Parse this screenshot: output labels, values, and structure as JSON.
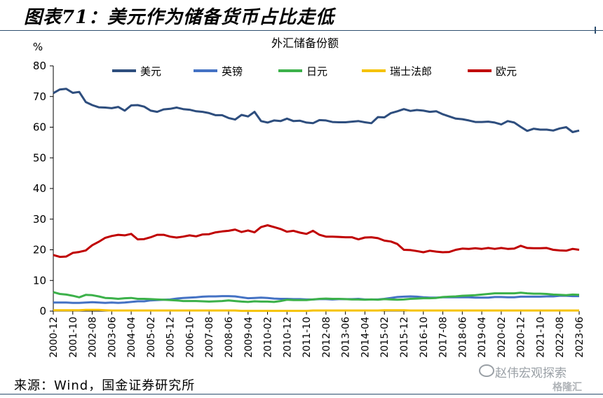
{
  "figure_title": "图表71：美元作为储备货币占比走低",
  "source": "来源：Wind，国金证券研究所",
  "watermark": {
    "primary": "赵伟宏观探索",
    "secondary": "格隆汇"
  },
  "colors": {
    "美元": "#2e4e7e",
    "英镑": "#4472c4",
    "日元": "#3cb14a",
    "瑞士法郎": "#f5c200",
    "欧元": "#c00000",
    "rule": "#2e4e6e"
  },
  "chart_data": {
    "type": "line",
    "title": "外汇储备份额",
    "ylabel": "%",
    "ylim": [
      0,
      80
    ],
    "yticks": [
      0,
      10,
      20,
      30,
      40,
      50,
      60,
      70,
      80
    ],
    "grid": false,
    "legend_position": "top",
    "x": [
      "2000-12",
      "2001-03",
      "2001-06",
      "2001-10",
      "2002-02",
      "2002-05",
      "2002-08",
      "2002-12",
      "2003-03",
      "2003-06",
      "2003-09",
      "2003-12",
      "2004-04",
      "2004-07",
      "2004-10",
      "2005-02",
      "2005-05",
      "2005-08",
      "2005-12",
      "2006-03",
      "2006-06",
      "2006-10",
      "2007-01",
      "2007-04",
      "2007-08",
      "2007-11",
      "2008-02",
      "2008-06",
      "2008-09",
      "2008-12",
      "2009-04",
      "2009-07",
      "2009-10",
      "2010-02",
      "2010-05",
      "2010-08",
      "2010-12",
      "2011-03",
      "2011-06",
      "2011-10",
      "2012-01",
      "2012-04",
      "2012-08",
      "2012-11",
      "2013-02",
      "2013-06",
      "2013-09",
      "2013-12",
      "2014-04",
      "2014-07",
      "2014-10",
      "2015-02",
      "2015-05",
      "2015-08",
      "2015-12",
      "2016-03",
      "2016-06",
      "2016-10",
      "2017-01",
      "2017-04",
      "2017-08",
      "2017-11",
      "2018-02",
      "2018-06",
      "2018-09",
      "2018-12",
      "2019-04",
      "2019-07",
      "2019-10",
      "2020-02",
      "2020-05",
      "2020-08",
      "2020-12",
      "2021-03",
      "2021-06",
      "2021-10",
      "2022-01",
      "2022-04",
      "2022-08",
      "2022-11",
      "2023-02",
      "2023-06"
    ],
    "x_tick_labels": [
      "2000-12",
      "2001-10",
      "2002-08",
      "2003-06",
      "2004-04",
      "2005-02",
      "2005-12",
      "2006-10",
      "2007-08",
      "2008-06",
      "2009-04",
      "2010-02",
      "2010-12",
      "2011-10",
      "2012-08",
      "2013-06",
      "2014-04",
      "2015-02",
      "2015-12",
      "2016-10",
      "2017-08",
      "2018-06",
      "2019-04",
      "2020-02",
      "2020-12",
      "2021-10",
      "2022-08",
      "2023-06"
    ],
    "series": [
      {
        "name": "美元",
        "values": [
          71.1,
          72.3,
          72.5,
          71.2,
          71.5,
          68.2,
          67.2,
          66.5,
          66.4,
          66.2,
          66.6,
          65.4,
          67.1,
          67.2,
          66.7,
          65.4,
          65.0,
          65.8,
          66.0,
          66.4,
          65.9,
          65.7,
          65.2,
          65.0,
          64.6,
          63.9,
          63.9,
          63.0,
          62.5,
          64.0,
          63.5,
          65.0,
          62.0,
          61.5,
          62.2,
          62.0,
          62.8,
          62.0,
          62.1,
          61.5,
          61.3,
          62.3,
          62.2,
          61.7,
          61.6,
          61.6,
          61.8,
          62.0,
          61.6,
          61.3,
          63.3,
          63.2,
          64.6,
          65.2,
          65.9,
          65.3,
          65.6,
          65.4,
          65.0,
          65.2,
          64.2,
          63.5,
          62.8,
          62.6,
          62.2,
          61.7,
          61.7,
          61.8,
          61.5,
          60.9,
          62.0,
          61.5,
          60.1,
          58.8,
          59.5,
          59.2,
          59.2,
          58.9,
          59.6,
          60.0,
          58.4,
          58.9
        ]
      },
      {
        "name": "英镑",
        "values": [
          2.8,
          2.8,
          2.8,
          2.7,
          2.7,
          2.8,
          2.9,
          2.8,
          2.7,
          2.8,
          2.7,
          2.8,
          3.0,
          3.2,
          3.2,
          3.5,
          3.6,
          3.7,
          3.8,
          4.1,
          4.3,
          4.4,
          4.5,
          4.7,
          4.8,
          4.8,
          4.9,
          4.9,
          4.8,
          4.5,
          4.2,
          4.3,
          4.4,
          4.3,
          4.1,
          4.0,
          4.0,
          3.9,
          3.9,
          3.8,
          3.8,
          3.9,
          3.9,
          3.8,
          3.9,
          3.9,
          3.9,
          4.0,
          3.8,
          3.8,
          3.8,
          4.0,
          4.3,
          4.6,
          4.7,
          4.8,
          4.7,
          4.5,
          4.4,
          4.4,
          4.5,
          4.5,
          4.5,
          4.5,
          4.5,
          4.4,
          4.4,
          4.4,
          4.6,
          4.6,
          4.5,
          4.5,
          4.7,
          4.7,
          4.7,
          4.7,
          4.8,
          4.8,
          5.0,
          5.0,
          4.9,
          4.9
        ]
      },
      {
        "name": "日元",
        "values": [
          6.2,
          5.6,
          5.4,
          5.0,
          4.5,
          5.3,
          5.2,
          4.8,
          4.3,
          4.2,
          4.0,
          4.2,
          4.3,
          4.0,
          4.0,
          3.9,
          3.8,
          3.7,
          3.6,
          3.5,
          3.3,
          3.3,
          3.3,
          3.2,
          3.1,
          3.2,
          3.3,
          3.5,
          3.3,
          3.1,
          3.0,
          3.2,
          3.1,
          3.1,
          3.0,
          3.3,
          3.7,
          3.6,
          3.6,
          3.6,
          3.8,
          4.0,
          4.1,
          4.0,
          4.0,
          3.9,
          3.8,
          3.8,
          3.7,
          3.8,
          3.7,
          3.9,
          3.8,
          3.7,
          3.8,
          4.0,
          4.1,
          4.2,
          4.2,
          4.3,
          4.6,
          4.7,
          4.8,
          5.0,
          5.1,
          5.2,
          5.4,
          5.6,
          5.8,
          5.8,
          5.8,
          5.8,
          6.0,
          5.8,
          5.7,
          5.7,
          5.6,
          5.4,
          5.3,
          5.2,
          5.4,
          5.3
        ]
      },
      {
        "name": "瑞士法郎",
        "values": [
          0.3,
          0.3,
          0.3,
          0.3,
          0.3,
          0.4,
          0.4,
          0.4,
          0.3,
          0.2,
          0.2,
          0.2,
          0.2,
          0.2,
          0.2,
          0.2,
          0.2,
          0.2,
          0.2,
          0.2,
          0.2,
          0.2,
          0.2,
          0.2,
          0.2,
          0.2,
          0.2,
          0.2,
          0.2,
          0.1,
          0.1,
          0.1,
          0.1,
          0.1,
          0.1,
          0.1,
          0.1,
          0.1,
          0.1,
          0.1,
          0.2,
          0.2,
          0.2,
          0.2,
          0.2,
          0.2,
          0.2,
          0.2,
          0.2,
          0.2,
          0.2,
          0.3,
          0.3,
          0.3,
          0.3,
          0.2,
          0.2,
          0.2,
          0.2,
          0.2,
          0.2,
          0.2,
          0.2,
          0.2,
          0.2,
          0.2,
          0.2,
          0.2,
          0.2,
          0.2,
          0.2,
          0.2,
          0.2,
          0.2,
          0.2,
          0.2,
          0.2,
          0.2,
          0.2,
          0.2,
          0.2,
          0.2
        ]
      },
      {
        "name": "欧元",
        "values": [
          18.3,
          17.7,
          17.8,
          19.0,
          19.3,
          19.8,
          21.5,
          22.6,
          23.9,
          24.5,
          24.9,
          24.7,
          25.2,
          23.4,
          23.5,
          24.1,
          24.9,
          24.9,
          24.3,
          24.0,
          24.3,
          24.7,
          24.4,
          25.0,
          25.1,
          25.7,
          26.0,
          26.2,
          26.6,
          25.8,
          26.3,
          25.7,
          27.4,
          28.0,
          27.4,
          26.8,
          25.9,
          26.2,
          25.6,
          25.2,
          26.2,
          24.9,
          24.3,
          24.3,
          24.2,
          24.1,
          24.1,
          23.4,
          24.0,
          24.1,
          23.8,
          23.0,
          22.7,
          21.9,
          20.0,
          19.9,
          19.6,
          19.2,
          19.7,
          19.4,
          19.2,
          19.3,
          20.0,
          20.4,
          20.3,
          20.5,
          20.3,
          20.6,
          20.3,
          20.6,
          20.3,
          20.4,
          21.3,
          20.6,
          20.5,
          20.5,
          20.6,
          20.0,
          19.8,
          19.7,
          20.3,
          20.0
        ]
      }
    ]
  }
}
